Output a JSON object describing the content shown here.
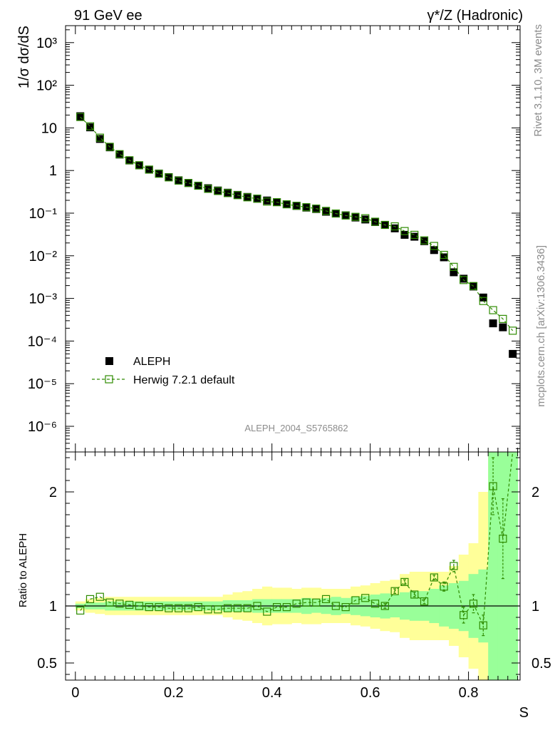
{
  "header": {
    "left_label": "91 GeV ee",
    "right_label": "γ*/Z (Hadronic)"
  },
  "side_labels": {
    "top": "Rivet 3.1.10,  3M events",
    "bottom": "mcplots.cern.ch [arXiv:1306.3436]"
  },
  "analysis_id": "ALEPH_2004_S5765862",
  "colors": {
    "data": "#000000",
    "mc": "#2e8b00",
    "band_total": "#ffff99",
    "band_stat": "#99ff99"
  },
  "chart_data": [
    {
      "type": "scatter",
      "title": "",
      "xlabel": "S",
      "ylabel": "1/σ  dσ/dS",
      "yscale": "log",
      "xlim": [
        -0.02,
        0.905
      ],
      "ylim": [
        2.5e-07,
        2500
      ],
      "yticks": [
        {
          "value": 1e-06,
          "label": "10⁻⁶"
        },
        {
          "value": 1e-05,
          "label": "10⁻⁵"
        },
        {
          "value": 0.0001,
          "label": "10⁻⁴"
        },
        {
          "value": 0.001,
          "label": "10⁻³"
        },
        {
          "value": 0.01,
          "label": "10⁻²"
        },
        {
          "value": 0.1,
          "label": "10⁻¹"
        },
        {
          "value": 1,
          "label": "1"
        },
        {
          "value": 10,
          "label": "10"
        },
        {
          "value": 100,
          "label": "10²"
        },
        {
          "value": 1000,
          "label": "10³"
        }
      ],
      "legend_position": "bottom-left",
      "x": [
        0.01,
        0.03,
        0.05,
        0.07,
        0.09,
        0.11,
        0.13,
        0.15,
        0.17,
        0.19,
        0.21,
        0.23,
        0.25,
        0.27,
        0.29,
        0.31,
        0.33,
        0.35,
        0.37,
        0.39,
        0.41,
        0.43,
        0.45,
        0.47,
        0.49,
        0.51,
        0.53,
        0.55,
        0.57,
        0.59,
        0.61,
        0.63,
        0.65,
        0.67,
        0.69,
        0.71,
        0.73,
        0.75,
        0.77,
        0.79,
        0.81,
        0.83,
        0.85,
        0.87,
        0.89
      ],
      "series": [
        {
          "name": "ALEPH",
          "marker": "filled-square",
          "values": [
            18.8,
            10.3,
            5.5,
            3.5,
            2.37,
            1.72,
            1.32,
            1.05,
            0.85,
            0.7,
            0.59,
            0.51,
            0.44,
            0.385,
            0.34,
            0.302,
            0.268,
            0.24,
            0.218,
            0.198,
            0.181,
            0.162,
            0.148,
            0.135,
            0.125,
            0.108,
            0.098,
            0.089,
            0.079,
            0.071,
            0.062,
            0.053,
            0.044,
            0.031,
            0.028,
            0.022,
            0.0136,
            0.0092,
            0.0041,
            0.0029,
            0.0019,
            0.00105,
            0.00026,
            0.00021,
            5e-05
          ]
        },
        {
          "name": "Herwig 7.2.1 default",
          "marker": "open-square-dashed-line",
          "values": [
            18.0,
            10.9,
            5.9,
            3.6,
            2.42,
            1.74,
            1.33,
            1.05,
            0.84,
            0.69,
            0.58,
            0.51,
            0.44,
            0.372,
            0.331,
            0.295,
            0.264,
            0.235,
            0.219,
            0.187,
            0.181,
            0.161,
            0.149,
            0.138,
            0.128,
            0.113,
            0.098,
            0.088,
            0.082,
            0.076,
            0.063,
            0.053,
            0.049,
            0.038,
            0.031,
            0.023,
            0.017,
            0.0105,
            0.0055,
            0.0027,
            0.00195,
            0.00087,
            0.00053,
            0.00033,
            0.000175
          ]
        }
      ]
    },
    {
      "type": "line",
      "title": "",
      "xlabel": "S",
      "ylabel": "Ratio to ALEPH",
      "xlim": [
        -0.02,
        0.905
      ],
      "ylim": [
        0.35,
        2.35
      ],
      "yticks": [
        0.5,
        1,
        2
      ],
      "xticks": [
        0,
        0.2,
        0.4,
        0.6,
        0.8
      ],
      "reference_line": 1,
      "bin_edges": [
        0,
        0.02,
        0.04,
        0.06,
        0.08,
        0.1,
        0.12,
        0.14,
        0.16,
        0.18,
        0.2,
        0.22,
        0.24,
        0.26,
        0.28,
        0.3,
        0.32,
        0.34,
        0.36,
        0.38,
        0.4,
        0.42,
        0.44,
        0.46,
        0.48,
        0.5,
        0.52,
        0.54,
        0.56,
        0.58,
        0.6,
        0.62,
        0.64,
        0.66,
        0.68,
        0.7,
        0.72,
        0.74,
        0.76,
        0.78,
        0.8,
        0.82,
        0.84,
        0.86,
        0.88,
        0.9
      ],
      "total_uncertainty": [
        0.04,
        0.06,
        0.07,
        0.08,
        0.08,
        0.08,
        0.08,
        0.08,
        0.08,
        0.08,
        0.08,
        0.08,
        0.08,
        0.08,
        0.08,
        0.1,
        0.12,
        0.13,
        0.15,
        0.17,
        0.16,
        0.16,
        0.15,
        0.16,
        0.16,
        0.15,
        0.15,
        0.15,
        0.17,
        0.18,
        0.2,
        0.22,
        0.23,
        0.28,
        0.3,
        0.3,
        0.3,
        0.3,
        0.35,
        0.45,
        0.55,
        1.0,
        1.5,
        1.5,
        1.5
      ],
      "stat_uncertainty": [
        0.02,
        0.03,
        0.03,
        0.04,
        0.04,
        0.04,
        0.04,
        0.04,
        0.04,
        0.04,
        0.04,
        0.04,
        0.04,
        0.04,
        0.04,
        0.05,
        0.05,
        0.05,
        0.06,
        0.06,
        0.06,
        0.06,
        0.06,
        0.07,
        0.06,
        0.07,
        0.08,
        0.07,
        0.08,
        0.09,
        0.1,
        0.11,
        0.1,
        0.12,
        0.13,
        0.13,
        0.15,
        0.18,
        0.2,
        0.22,
        0.28,
        0.32,
        1.5,
        1.5,
        1.5
      ],
      "series": [
        {
          "name": "Herwig 7.2.1 default",
          "values": [
            0.96,
            1.06,
            1.08,
            1.03,
            1.02,
            1.01,
            1.0,
            0.99,
            0.99,
            0.98,
            0.98,
            0.98,
            0.99,
            0.97,
            0.97,
            0.98,
            0.98,
            0.98,
            1.0,
            0.95,
            0.99,
            0.99,
            1.02,
            1.03,
            1.03,
            1.06,
            1.0,
            0.99,
            1.05,
            1.07,
            1.02,
            1.0,
            1.13,
            1.21,
            1.1,
            1.04,
            1.25,
            1.17,
            1.35,
            0.92,
            1.02,
            0.83,
            2.05,
            1.59,
            null
          ],
          "errors": [
            0.01,
            0.01,
            0.01,
            0.01,
            0.01,
            0.01,
            0.01,
            0.01,
            0.01,
            0.01,
            0.01,
            0.01,
            0.01,
            0.01,
            0.01,
            0.01,
            0.01,
            0.01,
            0.01,
            0.01,
            0.01,
            0.01,
            0.01,
            0.01,
            0.01,
            0.01,
            0.01,
            0.01,
            0.01,
            0.01,
            0.01,
            0.02,
            0.02,
            0.02,
            0.02,
            0.02,
            0.02,
            0.04,
            0.05,
            0.07,
            0.08,
            0.09,
            0.25,
            0.35,
            0
          ]
        }
      ]
    }
  ]
}
